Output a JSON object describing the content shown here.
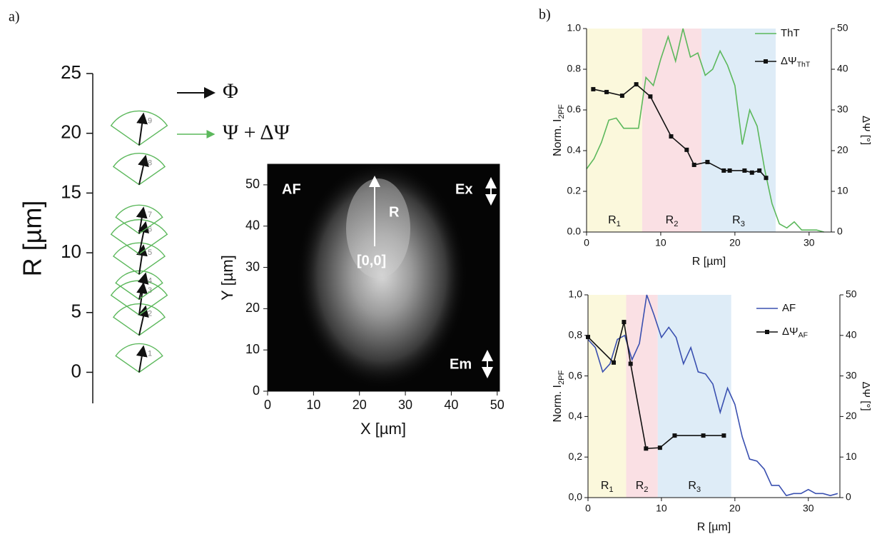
{
  "panel_a": {
    "label": "a)",
    "r_axis": {
      "title": "R [µm]",
      "ylim": [
        -2.6,
        25
      ],
      "yticks": [
        0,
        5,
        10,
        15,
        20,
        25
      ]
    },
    "fans": [
      {
        "label": "1",
        "r": 0
      },
      {
        "label": "2",
        "r": 3.1
      },
      {
        "label": "3",
        "r": 4.8
      },
      {
        "label": "4",
        "r": 6.1
      },
      {
        "label": "5",
        "r": 8.2
      },
      {
        "label": "6",
        "r": 9.9
      },
      {
        "label": "7",
        "r": 11.6
      },
      {
        "label": "8",
        "r": 15.7
      },
      {
        "label": "9",
        "r": 19.0
      }
    ],
    "legend": [
      "Φ",
      "Ψ + ΔΨ"
    ],
    "image": {
      "xlabel": "X [µm]",
      "ylabel": "Y [µm]",
      "xlim": [
        0,
        50.5
      ],
      "ylim": [
        0,
        55
      ],
      "xticks": [
        0,
        10,
        20,
        30,
        40,
        50
      ],
      "yticks": [
        0,
        10,
        20,
        30,
        40,
        50
      ],
      "annotations": [
        "AF",
        "Ex",
        "Em",
        "R",
        "[0,0]"
      ]
    }
  },
  "panel_b_label": "b)",
  "chart_data": [
    {
      "type": "line",
      "xlabel": "R [µm]",
      "ylabel": {
        "text": "Norm. I",
        "sub": "2PF"
      },
      "y2label": "ΔΨ [°]",
      "xlim": [
        0,
        33
      ],
      "ylim": [
        0,
        1
      ],
      "y2lim": [
        0,
        50
      ],
      "xticks": [
        0,
        10,
        20,
        30
      ],
      "yticks": [
        {
          "value": 0,
          "label": "0.0"
        },
        0.2,
        0.4,
        0.6,
        0.8,
        {
          "value": 1,
          "label": "1.0"
        }
      ],
      "y2ticks": [
        0,
        10,
        20,
        30,
        40,
        50
      ],
      "regions": [
        {
          "label": {
            "text": "R",
            "sub": "1"
          },
          "range": [
            0,
            7.5
          ],
          "color": "#fbf8dc"
        },
        {
          "label": {
            "text": "R",
            "sub": "2"
          },
          "range": [
            7.5,
            15.5
          ],
          "color": "#fae0e4"
        },
        {
          "label": {
            "text": "R",
            "sub": "3"
          },
          "range": [
            15.5,
            25.5
          ],
          "color": "#deecf7"
        }
      ],
      "series": [
        {
          "name": "ThT",
          "color": "#5cb85c",
          "x": [
            0,
            1,
            2,
            3,
            4,
            5,
            6,
            7,
            8,
            9,
            10,
            11,
            12,
            13,
            14,
            15,
            16,
            17,
            18,
            19,
            20,
            21,
            22,
            23,
            24,
            25,
            26,
            27,
            28,
            29,
            30,
            31,
            32
          ],
          "values": [
            0.31,
            0.36,
            0.44,
            0.55,
            0.56,
            0.51,
            0.51,
            0.51,
            0.76,
            0.72,
            0.85,
            0.96,
            0.84,
            1.0,
            0.86,
            0.88,
            0.77,
            0.8,
            0.89,
            0.82,
            0.72,
            0.43,
            0.6,
            0.52,
            0.31,
            0.14,
            0.04,
            0.02,
            0.05,
            0.01,
            0.01,
            0.01,
            0.0
          ]
        },
        {
          "name": {
            "text": "ΔΨ",
            "sub": "ThT"
          },
          "color": "#111111",
          "axis": "y2",
          "marker": "square",
          "x": [
            0.9,
            2.7,
            4.8,
            6.7,
            8.6,
            11.4,
            13.5,
            14.5,
            16.3,
            18.5,
            19.3,
            21.3,
            22.3,
            23.3,
            24.2
          ],
          "values": [
            35.1,
            34.4,
            33.5,
            36.3,
            33.3,
            23.5,
            20.2,
            16.5,
            17.2,
            15.1,
            15.1,
            15.1,
            14.6,
            15.1,
            13.3
          ]
        }
      ]
    },
    {
      "type": "line",
      "xlabel": "R [µm]",
      "ylabel": {
        "text": "Norm. I",
        "sub": "2PF"
      },
      "y2label": "ΔΨ [°]",
      "xlim": [
        0,
        34.3
      ],
      "ylim": [
        0,
        1
      ],
      "y2lim": [
        0,
        50
      ],
      "xticks": [
        0,
        10,
        20,
        30
      ],
      "yticks": [
        {
          "value": 0,
          "label": "0,0"
        },
        {
          "value": 0.2,
          "label": "0,2"
        },
        {
          "value": 0.4,
          "label": "0,4"
        },
        {
          "value": 0.6,
          "label": "0,6"
        },
        {
          "value": 0.8,
          "label": "0,8"
        },
        {
          "value": 1,
          "label": "1,0"
        }
      ],
      "y2ticks": [
        0,
        10,
        20,
        30,
        40,
        50
      ],
      "regions": [
        {
          "label": {
            "text": "R",
            "sub": "1"
          },
          "range": [
            0,
            5.2
          ],
          "color": "#fbf8dc"
        },
        {
          "label": {
            "text": "R",
            "sub": "2"
          },
          "range": [
            5.2,
            9.5
          ],
          "color": "#fae0e4"
        },
        {
          "label": {
            "text": "R",
            "sub": "3"
          },
          "range": [
            9.5,
            19.5
          ],
          "color": "#deecf7"
        }
      ],
      "series": [
        {
          "name": "AF",
          "color": "#3a50b0",
          "x": [
            0,
            1,
            2,
            3,
            4,
            5,
            6,
            7,
            8,
            9,
            10,
            11,
            12,
            13,
            14,
            15,
            16,
            17,
            18,
            19,
            20,
            21,
            22,
            23,
            24,
            25,
            26,
            27,
            28,
            29,
            30,
            31,
            32,
            33,
            34
          ],
          "values": [
            0.78,
            0.74,
            0.62,
            0.66,
            0.78,
            0.8,
            0.68,
            0.76,
            1.0,
            0.9,
            0.79,
            0.84,
            0.79,
            0.66,
            0.74,
            0.62,
            0.61,
            0.56,
            0.42,
            0.54,
            0.46,
            0.3,
            0.19,
            0.18,
            0.14,
            0.06,
            0.06,
            0.01,
            0.02,
            0.02,
            0.04,
            0.02,
            0.02,
            0.01,
            0.02
          ]
        },
        {
          "name": {
            "text": "ΔΨ",
            "sub": "AF"
          },
          "color": "#111111",
          "axis": "y2",
          "marker": "square",
          "x": [
            0,
            3.5,
            4.9,
            5.8,
            7.9,
            9.8,
            11.8,
            15.7,
            18.5
          ],
          "values": [
            39.6,
            33.3,
            43.3,
            33,
            12.1,
            12.3,
            15.3,
            15.3,
            15.3
          ]
        }
      ]
    }
  ]
}
